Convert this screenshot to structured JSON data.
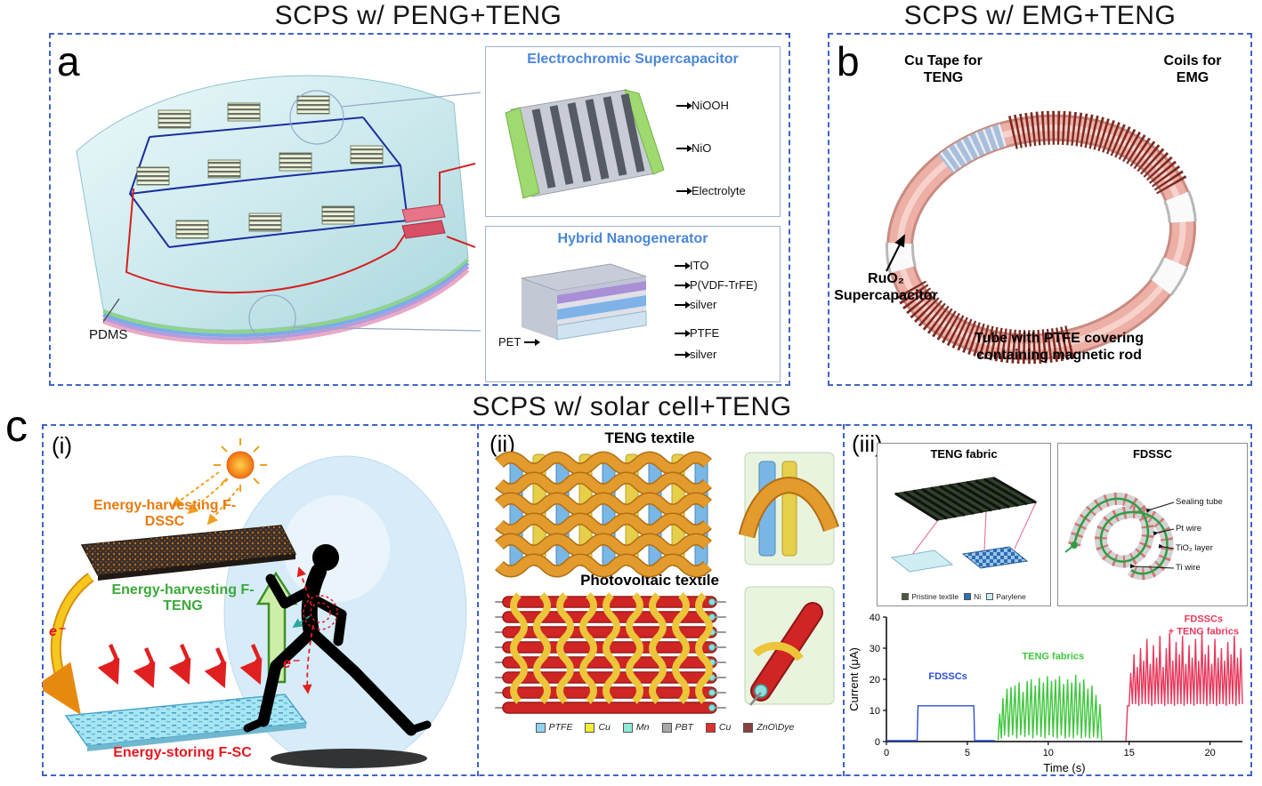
{
  "figure": {
    "panel_a": {
      "letter": "a",
      "title": "SCPS w/ PENG+TENG",
      "pdms_label": "PDMS",
      "inset_supercapacitor": {
        "title": "Electrochromic Supercapacitor",
        "layer_labels": [
          "NiOOH",
          "NiO",
          "Electrolyte"
        ]
      },
      "inset_nanogenerator": {
        "title": "Hybrid Nanogenerator",
        "layer_labels": [
          "ITO",
          "P(VDF-TrFE)",
          "silver",
          "PTFE",
          "silver"
        ],
        "substrate_label": "PET"
      }
    },
    "panel_b": {
      "letter": "b",
      "title": "SCPS w/ EMG+TENG",
      "labels": {
        "cu_tape": "Cu Tape for TENG",
        "coils": "Coils for EMG",
        "supercapacitor": "RuO₂ Supercapacitor",
        "tube": "Tube with PTFE covering containing magnetic rod"
      }
    },
    "panel_c": {
      "letter": "c",
      "title": "SCPS w/ solar cell+TENG",
      "sub_i": {
        "label": "(i)",
        "harvesting_dssc": "Energy-harvesting F-DSSC",
        "harvesting_teng": "Energy-harvesting F-TENG",
        "storing_sc": "Energy-storing F-SC",
        "electron_1": "e⁻",
        "electron_2": "e⁻"
      },
      "sub_ii": {
        "label": "(ii)",
        "teng_textile_title": "TENG textile",
        "pv_textile_title": "Photovoltaic textile",
        "legend": [
          {
            "label": "PTFE",
            "color": "#8fd4ee"
          },
          {
            "label": "Cu",
            "color": "#f2ed3a"
          },
          {
            "label": "Mn",
            "color": "#8fe8d8"
          },
          {
            "label": "PBT",
            "color": "#a8a8a8"
          },
          {
            "label": "Cu",
            "color": "#e03030"
          },
          {
            "label": "ZnO\\Dye",
            "color": "#8a4040"
          }
        ]
      },
      "sub_iii": {
        "label": "(iii)",
        "teng_fabric_title": "TENG fabric",
        "fdssc_title": "FDSSC",
        "fabric_legend": [
          {
            "label": "Pristine textile",
            "color": "#4a5d3a"
          },
          {
            "label": "Ni",
            "color": "#2b6fb5"
          },
          {
            "label": "Parylene",
            "color": "#c8ecf4"
          }
        ],
        "fiber_labels": [
          "Sealing tube",
          "Pt wire",
          "TiO₂ layer",
          "Ti wire"
        ]
      }
    }
  },
  "chart_data": {
    "type": "line",
    "title": "",
    "xlabel": "Time (s)",
    "ylabel": "Current (μA)",
    "xlim": [
      0,
      22
    ],
    "ylim": [
      0,
      40
    ],
    "xticks": [
      0,
      5,
      10,
      15,
      20
    ],
    "yticks": [
      0,
      10,
      20,
      30,
      40
    ],
    "grid": false,
    "legend_position": "inline",
    "series": [
      {
        "name": "FDSSCs",
        "color": "#2b4fd7",
        "points": [
          [
            0,
            0.3
          ],
          [
            1.9,
            0.3
          ],
          [
            1.95,
            11.5
          ],
          [
            5.4,
            11.5
          ],
          [
            5.45,
            0.3
          ],
          [
            6.7,
            0.3
          ]
        ]
      },
      {
        "name": "TENG fabrics",
        "color": "#3ec73c",
        "points": [
          [
            6.9,
            0.4
          ],
          [
            7.0,
            9
          ],
          [
            7.1,
            1
          ],
          [
            7.2,
            14
          ],
          [
            7.3,
            2
          ],
          [
            7.45,
            17
          ],
          [
            7.55,
            1.5
          ],
          [
            7.7,
            17.5
          ],
          [
            7.8,
            2
          ],
          [
            7.95,
            18
          ],
          [
            8.05,
            1
          ],
          [
            8.2,
            19
          ],
          [
            8.3,
            2
          ],
          [
            8.45,
            16
          ],
          [
            8.55,
            1.5
          ],
          [
            8.7,
            19.5
          ],
          [
            8.8,
            2
          ],
          [
            8.95,
            20
          ],
          [
            9.05,
            1
          ],
          [
            9.2,
            18
          ],
          [
            9.3,
            2
          ],
          [
            9.45,
            20.5
          ],
          [
            9.55,
            1.5
          ],
          [
            9.7,
            19
          ],
          [
            9.8,
            1
          ],
          [
            9.95,
            21
          ],
          [
            10.05,
            2
          ],
          [
            10.2,
            19.5
          ],
          [
            10.3,
            1.5
          ],
          [
            10.45,
            20
          ],
          [
            10.55,
            1
          ],
          [
            10.7,
            21
          ],
          [
            10.8,
            2
          ],
          [
            10.95,
            18.5
          ],
          [
            11.05,
            1
          ],
          [
            11.2,
            20
          ],
          [
            11.3,
            1.5
          ],
          [
            11.45,
            19
          ],
          [
            11.55,
            1
          ],
          [
            11.7,
            21.5
          ],
          [
            11.8,
            2
          ],
          [
            11.95,
            19
          ],
          [
            12.05,
            1
          ],
          [
            12.2,
            20
          ],
          [
            12.3,
            1.5
          ],
          [
            12.45,
            17
          ],
          [
            12.55,
            1
          ],
          [
            12.7,
            18
          ],
          [
            12.8,
            1.5
          ],
          [
            12.95,
            15
          ],
          [
            13.05,
            1
          ],
          [
            13.2,
            12
          ],
          [
            13.3,
            0.4
          ]
        ]
      },
      {
        "name": "FDSSCs + TENG fabrics",
        "color": "#e8385c",
        "points": [
          [
            14.8,
            0.3
          ],
          [
            14.9,
            11.5
          ],
          [
            15.0,
            11.5
          ],
          [
            15.1,
            22
          ],
          [
            15.2,
            12
          ],
          [
            15.3,
            28
          ],
          [
            15.4,
            12
          ],
          [
            15.5,
            24
          ],
          [
            15.6,
            11.5
          ],
          [
            15.7,
            30
          ],
          [
            15.8,
            12
          ],
          [
            15.9,
            26
          ],
          [
            16.0,
            12
          ],
          [
            16.1,
            33
          ],
          [
            16.2,
            12
          ],
          [
            16.3,
            25
          ],
          [
            16.4,
            11.5
          ],
          [
            16.5,
            31
          ],
          [
            16.6,
            12
          ],
          [
            16.7,
            27
          ],
          [
            16.8,
            12
          ],
          [
            16.9,
            34
          ],
          [
            17.0,
            12
          ],
          [
            17.1,
            24
          ],
          [
            17.2,
            11.5
          ],
          [
            17.3,
            30
          ],
          [
            17.4,
            12
          ],
          [
            17.5,
            35
          ],
          [
            17.6,
            12
          ],
          [
            17.7,
            26
          ],
          [
            17.8,
            11.5
          ],
          [
            17.9,
            32
          ],
          [
            18.0,
            12
          ],
          [
            18.1,
            28
          ],
          [
            18.2,
            12
          ],
          [
            18.3,
            34
          ],
          [
            18.4,
            11.5
          ],
          [
            18.5,
            25
          ],
          [
            18.6,
            12
          ],
          [
            18.7,
            31
          ],
          [
            18.8,
            12
          ],
          [
            18.9,
            27
          ],
          [
            19.0,
            11.5
          ],
          [
            19.1,
            33
          ],
          [
            19.2,
            12
          ],
          [
            19.3,
            26
          ],
          [
            19.4,
            12
          ],
          [
            19.5,
            35
          ],
          [
            19.6,
            12
          ],
          [
            19.7,
            28
          ],
          [
            19.8,
            11.5
          ],
          [
            19.9,
            31
          ],
          [
            20.0,
            12
          ],
          [
            20.1,
            25
          ],
          [
            20.2,
            12
          ],
          [
            20.3,
            33
          ],
          [
            20.4,
            11.5
          ],
          [
            20.5,
            27
          ],
          [
            20.6,
            12
          ],
          [
            20.7,
            30
          ],
          [
            20.8,
            12
          ],
          [
            20.9,
            26
          ],
          [
            21.0,
            11.5
          ],
          [
            21.1,
            32
          ],
          [
            21.2,
            12
          ],
          [
            21.3,
            28
          ],
          [
            21.4,
            12
          ],
          [
            21.5,
            34
          ],
          [
            21.6,
            11.5
          ],
          [
            21.7,
            27
          ],
          [
            21.8,
            12
          ],
          [
            21.9,
            30
          ],
          [
            22.0,
            12
          ]
        ]
      }
    ],
    "annotations": [
      {
        "text": "FDSSCs",
        "x": 3.8,
        "y": 20,
        "color": "#2b4fd7"
      },
      {
        "text": "TENG fabrics",
        "x": 10.3,
        "y": 26.5,
        "color": "#3ec73c"
      },
      {
        "text": "FDSSCs",
        "x": 19.6,
        "y": 38.5,
        "color": "#e8385c"
      },
      {
        "text": "+ TENG fabrics",
        "x": 19.6,
        "y": 34.5,
        "color": "#e8385c"
      }
    ]
  }
}
